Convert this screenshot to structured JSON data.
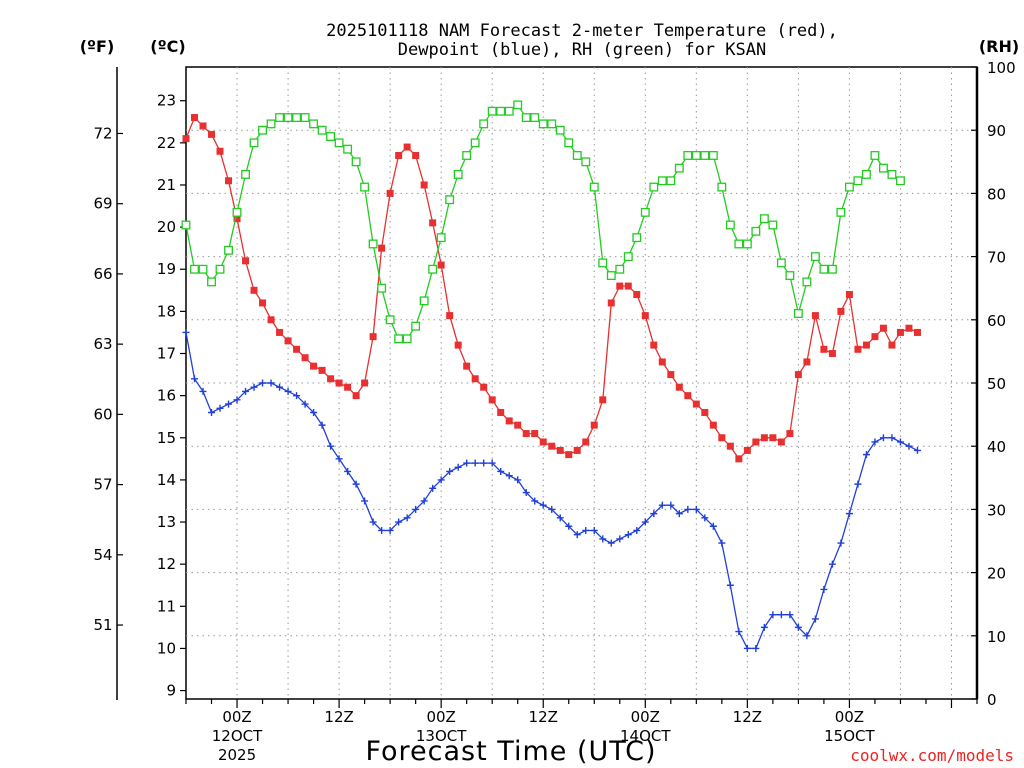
{
  "chart_data": {
    "type": "line",
    "title_line1": "2025101118 NAM Forecast 2-meter Temperature (red),",
    "title_line2": "Dewpoint (blue), RH (green) for KSAN",
    "units": {
      "fahrenheit": "(ºF)",
      "celsius": "(ºC)",
      "rh": "(RH)"
    },
    "y_celsius": {
      "ylim": [
        8.8,
        23.8
      ],
      "ticks": [
        9,
        10,
        11,
        12,
        13,
        14,
        15,
        16,
        17,
        18,
        19,
        20,
        21,
        22,
        23
      ]
    },
    "y_fahrenheit": {
      "ticks": [
        51,
        54,
        57,
        60,
        63,
        66,
        69,
        72
      ]
    },
    "y_rh": {
      "ylim": [
        0,
        100
      ],
      "ticks": [
        0,
        10,
        20,
        30,
        40,
        50,
        60,
        70,
        80,
        90,
        100
      ]
    },
    "x": {
      "start_hour": -6,
      "end_hour": 87,
      "step_hours": 1,
      "ticks": [
        {
          "hour": 0,
          "l1": "00Z",
          "l2": "12OCT",
          "l3": "2025"
        },
        {
          "hour": 12,
          "l1": "12Z",
          "l2": "",
          "l3": ""
        },
        {
          "hour": 24,
          "l1": "00Z",
          "l2": "13OCT",
          "l3": ""
        },
        {
          "hour": 36,
          "l1": "12Z",
          "l2": "",
          "l3": ""
        },
        {
          "hour": 48,
          "l1": "00Z",
          "l2": "14OCT",
          "l3": ""
        },
        {
          "hour": 60,
          "l1": "12Z",
          "l2": "",
          "l3": ""
        },
        {
          "hour": 72,
          "l1": "00Z",
          "l2": "15OCT",
          "l3": ""
        },
        {
          "hour": 84,
          "l1": "",
          "l2": "",
          "l3": ""
        }
      ]
    },
    "xlabel": "Forecast Time (UTC)",
    "credit": "coolwx.com/models",
    "series": [
      {
        "name": "2-meter Temperature",
        "units": "C",
        "color": "#e83030",
        "marker": "square-filled",
        "points": [
          [
            -6,
            22.1
          ],
          [
            -5,
            22.6
          ],
          [
            -4,
            22.4
          ],
          [
            -3,
            22.2
          ],
          [
            -2,
            21.8
          ],
          [
            -1,
            21.1
          ],
          [
            0,
            20.2
          ],
          [
            1,
            19.2
          ],
          [
            2,
            18.5
          ],
          [
            3,
            18.2
          ],
          [
            4,
            17.8
          ],
          [
            5,
            17.5
          ],
          [
            6,
            17.3
          ],
          [
            7,
            17.1
          ],
          [
            8,
            16.9
          ],
          [
            9,
            16.7
          ],
          [
            10,
            16.6
          ],
          [
            11,
            16.4
          ],
          [
            12,
            16.3
          ],
          [
            13,
            16.2
          ],
          [
            14,
            16.0
          ],
          [
            15,
            16.3
          ],
          [
            16,
            17.4
          ],
          [
            17,
            19.5
          ],
          [
            18,
            20.8
          ],
          [
            19,
            21.7
          ],
          [
            20,
            21.9
          ],
          [
            21,
            21.7
          ],
          [
            22,
            21.0
          ],
          [
            23,
            20.1
          ],
          [
            24,
            19.1
          ],
          [
            25,
            17.9
          ],
          [
            26,
            17.2
          ],
          [
            27,
            16.7
          ],
          [
            28,
            16.4
          ],
          [
            29,
            16.2
          ],
          [
            30,
            15.9
          ],
          [
            31,
            15.6
          ],
          [
            32,
            15.4
          ],
          [
            33,
            15.3
          ],
          [
            34,
            15.1
          ],
          [
            35,
            15.1
          ],
          [
            36,
            14.9
          ],
          [
            37,
            14.8
          ],
          [
            38,
            14.7
          ],
          [
            39,
            14.6
          ],
          [
            40,
            14.7
          ],
          [
            41,
            14.9
          ],
          [
            42,
            15.3
          ],
          [
            43,
            15.9
          ],
          [
            44,
            18.2
          ],
          [
            45,
            18.6
          ],
          [
            46,
            18.6
          ],
          [
            47,
            18.4
          ],
          [
            48,
            17.9
          ],
          [
            49,
            17.2
          ],
          [
            50,
            16.8
          ],
          [
            51,
            16.5
          ],
          [
            52,
            16.2
          ],
          [
            53,
            16.0
          ],
          [
            54,
            15.8
          ],
          [
            55,
            15.6
          ],
          [
            56,
            15.3
          ],
          [
            57,
            15.0
          ],
          [
            58,
            14.8
          ],
          [
            59,
            14.5
          ],
          [
            60,
            14.7
          ],
          [
            61,
            14.9
          ],
          [
            62,
            15.0
          ],
          [
            63,
            15.0
          ],
          [
            64,
            14.9
          ],
          [
            65,
            15.1
          ],
          [
            66,
            16.5
          ],
          [
            67,
            16.8
          ],
          [
            68,
            17.9
          ],
          [
            69,
            17.1
          ],
          [
            70,
            17.0
          ],
          [
            71,
            18.0
          ],
          [
            72,
            18.4
          ],
          [
            73,
            17.1
          ],
          [
            74,
            17.2
          ],
          [
            75,
            17.4
          ],
          [
            76,
            17.6
          ],
          [
            77,
            17.2
          ],
          [
            78,
            17.5
          ],
          [
            79,
            17.6
          ],
          [
            80,
            17.5
          ]
        ]
      },
      {
        "name": "Dewpoint",
        "units": "C",
        "color": "#2040d8",
        "marker": "plus",
        "points": [
          [
            -6,
            17.5
          ],
          [
            -5,
            16.4
          ],
          [
            -4,
            16.1
          ],
          [
            -3,
            15.6
          ],
          [
            -2,
            15.7
          ],
          [
            -1,
            15.8
          ],
          [
            0,
            15.9
          ],
          [
            1,
            16.1
          ],
          [
            2,
            16.2
          ],
          [
            3,
            16.3
          ],
          [
            4,
            16.3
          ],
          [
            5,
            16.2
          ],
          [
            6,
            16.1
          ],
          [
            7,
            16.0
          ],
          [
            8,
            15.8
          ],
          [
            9,
            15.6
          ],
          [
            10,
            15.3
          ],
          [
            11,
            14.8
          ],
          [
            12,
            14.5
          ],
          [
            13,
            14.2
          ],
          [
            14,
            13.9
          ],
          [
            15,
            13.5
          ],
          [
            16,
            13.0
          ],
          [
            17,
            12.8
          ],
          [
            18,
            12.8
          ],
          [
            19,
            13.0
          ],
          [
            20,
            13.1
          ],
          [
            21,
            13.3
          ],
          [
            22,
            13.5
          ],
          [
            23,
            13.8
          ],
          [
            24,
            14.0
          ],
          [
            25,
            14.2
          ],
          [
            26,
            14.3
          ],
          [
            27,
            14.4
          ],
          [
            28,
            14.4
          ],
          [
            29,
            14.4
          ],
          [
            30,
            14.4
          ],
          [
            31,
            14.2
          ],
          [
            32,
            14.1
          ],
          [
            33,
            14.0
          ],
          [
            34,
            13.7
          ],
          [
            35,
            13.5
          ],
          [
            36,
            13.4
          ],
          [
            37,
            13.3
          ],
          [
            38,
            13.1
          ],
          [
            39,
            12.9
          ],
          [
            40,
            12.7
          ],
          [
            41,
            12.8
          ],
          [
            42,
            12.8
          ],
          [
            43,
            12.6
          ],
          [
            44,
            12.5
          ],
          [
            45,
            12.6
          ],
          [
            46,
            12.7
          ],
          [
            47,
            12.8
          ],
          [
            48,
            13.0
          ],
          [
            49,
            13.2
          ],
          [
            50,
            13.4
          ],
          [
            51,
            13.4
          ],
          [
            52,
            13.2
          ],
          [
            53,
            13.3
          ],
          [
            54,
            13.3
          ],
          [
            55,
            13.1
          ],
          [
            56,
            12.9
          ],
          [
            57,
            12.5
          ],
          [
            58,
            11.5
          ],
          [
            59,
            10.4
          ],
          [
            60,
            10.0
          ],
          [
            61,
            10.0
          ],
          [
            62,
            10.5
          ],
          [
            63,
            10.8
          ],
          [
            64,
            10.8
          ],
          [
            65,
            10.8
          ],
          [
            66,
            10.5
          ],
          [
            67,
            10.3
          ],
          [
            68,
            10.7
          ],
          [
            69,
            11.4
          ],
          [
            70,
            12.0
          ],
          [
            71,
            12.5
          ],
          [
            72,
            13.2
          ],
          [
            73,
            13.9
          ],
          [
            74,
            14.6
          ],
          [
            75,
            14.9
          ],
          [
            76,
            15.0
          ],
          [
            77,
            15.0
          ],
          [
            78,
            14.9
          ],
          [
            79,
            14.8
          ],
          [
            80,
            14.7
          ]
        ]
      },
      {
        "name": "RH",
        "units": "%",
        "color": "#22cc22",
        "marker": "square-open",
        "points": [
          [
            -6,
            75
          ],
          [
            -5,
            68
          ],
          [
            -4,
            68
          ],
          [
            -3,
            66
          ],
          [
            -2,
            68
          ],
          [
            -1,
            71
          ],
          [
            0,
            77
          ],
          [
            1,
            83
          ],
          [
            2,
            88
          ],
          [
            3,
            90
          ],
          [
            4,
            91
          ],
          [
            5,
            92
          ],
          [
            6,
            92
          ],
          [
            7,
            92
          ],
          [
            8,
            92
          ],
          [
            9,
            91
          ],
          [
            10,
            90
          ],
          [
            11,
            89
          ],
          [
            12,
            88
          ],
          [
            13,
            87
          ],
          [
            14,
            85
          ],
          [
            15,
            81
          ],
          [
            16,
            72
          ],
          [
            17,
            65
          ],
          [
            18,
            60
          ],
          [
            19,
            57
          ],
          [
            20,
            57
          ],
          [
            21,
            59
          ],
          [
            22,
            63
          ],
          [
            23,
            68
          ],
          [
            24,
            73
          ],
          [
            25,
            79
          ],
          [
            26,
            83
          ],
          [
            27,
            86
          ],
          [
            28,
            88
          ],
          [
            29,
            91
          ],
          [
            30,
            93
          ],
          [
            31,
            93
          ],
          [
            32,
            93
          ],
          [
            33,
            94
          ],
          [
            34,
            92
          ],
          [
            35,
            92
          ],
          [
            36,
            91
          ],
          [
            37,
            91
          ],
          [
            38,
            90
          ],
          [
            39,
            88
          ],
          [
            40,
            86
          ],
          [
            41,
            85
          ],
          [
            42,
            81
          ],
          [
            43,
            69
          ],
          [
            44,
            67
          ],
          [
            45,
            68
          ],
          [
            46,
            70
          ],
          [
            47,
            73
          ],
          [
            48,
            77
          ],
          [
            49,
            81
          ],
          [
            50,
            82
          ],
          [
            51,
            82
          ],
          [
            52,
            84
          ],
          [
            53,
            86
          ],
          [
            54,
            86
          ],
          [
            55,
            86
          ],
          [
            56,
            86
          ],
          [
            57,
            81
          ],
          [
            58,
            75
          ],
          [
            59,
            72
          ],
          [
            60,
            72
          ],
          [
            61,
            74
          ],
          [
            62,
            76
          ],
          [
            63,
            75
          ],
          [
            64,
            69
          ],
          [
            65,
            67
          ],
          [
            66,
            61
          ],
          [
            67,
            66
          ],
          [
            68,
            70
          ],
          [
            69,
            68
          ],
          [
            70,
            68
          ],
          [
            71,
            77
          ],
          [
            72,
            81
          ],
          [
            73,
            82
          ],
          [
            74,
            83
          ],
          [
            75,
            86
          ],
          [
            76,
            84
          ],
          [
            77,
            83
          ],
          [
            78,
            82
          ]
        ]
      }
    ]
  }
}
